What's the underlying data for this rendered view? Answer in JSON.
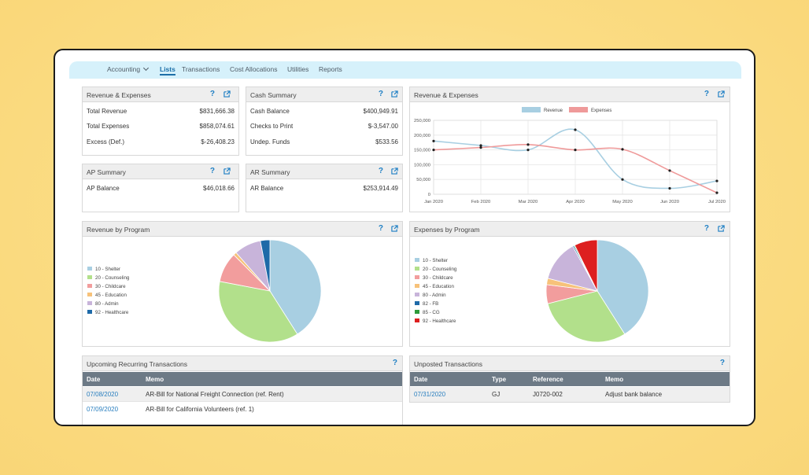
{
  "nav": {
    "accounting": "Accounting",
    "lists": "Lists",
    "transactions": "Transactions",
    "cost_allocations": "Cost Allocations",
    "utilities": "Utilities",
    "reports": "Reports"
  },
  "help_glyph": "?",
  "rev_exp_summary": {
    "title": "Revenue & Expenses",
    "rows": [
      {
        "label": "Total Revenue",
        "value": "$831,666.38"
      },
      {
        "label": "Total Expenses",
        "value": "$858,074.61"
      },
      {
        "label": "Excess (Def.)",
        "value": "$-26,408.23"
      }
    ]
  },
  "cash_summary": {
    "title": "Cash Summary",
    "rows": [
      {
        "label": "Cash Balance",
        "value": "$400,949.91"
      },
      {
        "label": "Checks to Print",
        "value": "$-3,547.00"
      },
      {
        "label": "Undep. Funds",
        "value": "$533.56"
      }
    ]
  },
  "ap_summary": {
    "title": "AP Summary",
    "label": "AP Balance",
    "value": "$46,018.66"
  },
  "ar_summary": {
    "title": "AR Summary",
    "label": "AR Balance",
    "value": "$253,914.49"
  },
  "line_chart_panel": {
    "title": "Revenue & Expenses"
  },
  "rev_program_panel": {
    "title": "Revenue by Program"
  },
  "exp_program_panel": {
    "title": "Expenses by Program"
  },
  "chart_data": [
    {
      "type": "line",
      "title": "Revenue & Expenses",
      "categories": [
        "Jan 2020",
        "Feb 2020",
        "Mar 2020",
        "Apr 2020",
        "May 2020",
        "Jun 2020",
        "Jul 2020"
      ],
      "ylim": [
        0,
        250000
      ],
      "yticks": [
        "0",
        "50,000",
        "100,000",
        "150,000",
        "200,000",
        "250,000"
      ],
      "legend_position": "top",
      "grid": true,
      "series": [
        {
          "name": "Revenue",
          "color": "#a8cfe2",
          "values": [
            180000,
            165000,
            150000,
            218000,
            50000,
            20000,
            45000
          ]
        },
        {
          "name": "Expenses",
          "color": "#ef9a9a",
          "values": [
            150000,
            158000,
            168000,
            150000,
            152000,
            80000,
            5000
          ]
        }
      ]
    },
    {
      "type": "pie",
      "title": "Revenue by Program",
      "legend_position": "left",
      "labels": [
        "10 - Shelter",
        "20 - Counseling",
        "30 - Childcare",
        "45 - Education",
        "80 - Admin",
        "92 - Healthcare"
      ],
      "colors": [
        "#a8cfe2",
        "#b2e08b",
        "#f29d9d",
        "#f7c27a",
        "#c8b4da",
        "#1e6aa8"
      ],
      "values": [
        41,
        37,
        9.5,
        1,
        8.5,
        3
      ]
    },
    {
      "type": "pie",
      "title": "Expenses by Program",
      "legend_position": "left",
      "labels": [
        "10 - Shelter",
        "20 - Counseling",
        "30 - Childcare",
        "45 - Education",
        "80 - Admin",
        "82 - FB",
        "85 - CG",
        "92 - Healthcare"
      ],
      "colors": [
        "#a8cfe2",
        "#b2e08b",
        "#f29d9d",
        "#f7c27a",
        "#c8b4da",
        "#1e6aa8",
        "#2e9a3a",
        "#dd1f1f"
      ],
      "values": [
        41,
        30,
        6,
        2,
        13,
        0.4,
        0.3,
        7.3
      ]
    }
  ],
  "recurring": {
    "title": "Upcoming Recurring Transactions",
    "headers": {
      "date": "Date",
      "memo": "Memo"
    },
    "rows": [
      {
        "date": "07/08/2020",
        "memo": "AR-Bill for National Freight Connection (ref. Rent)"
      },
      {
        "date": "07/09/2020",
        "memo": "AR-Bill for California Volunteers (ref. 1)"
      }
    ]
  },
  "unposted": {
    "title": "Unposted Transactions",
    "headers": {
      "date": "Date",
      "type": "Type",
      "reference": "Reference",
      "memo": "Memo"
    },
    "rows": [
      {
        "date": "07/31/2020",
        "type": "GJ",
        "reference": "J0720-002",
        "memo": "Adjust bank balance"
      }
    ]
  }
}
